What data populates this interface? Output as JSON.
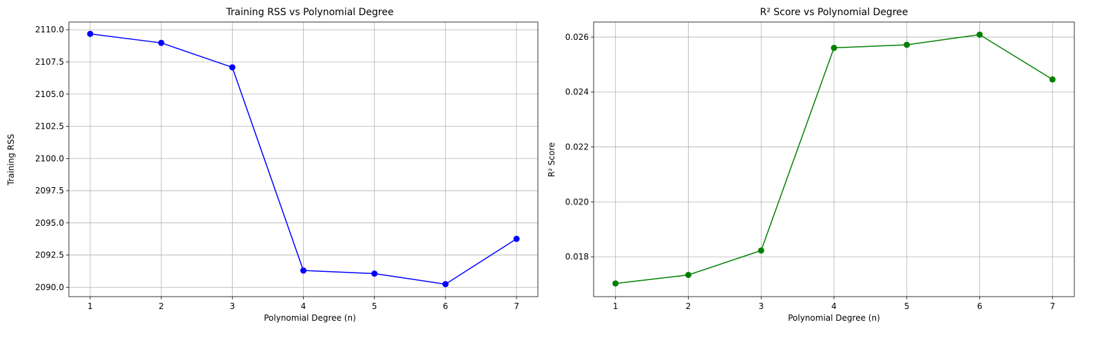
{
  "chart_data": [
    {
      "type": "line",
      "title": "Training RSS vs Polynomial Degree",
      "xlabel": "Polynomial Degree (n)",
      "ylabel": "Training RSS",
      "x": [
        1,
        2,
        3,
        4,
        5,
        6,
        7
      ],
      "xticks": [
        1,
        2,
        3,
        4,
        5,
        6,
        7
      ],
      "xlim": [
        0.7,
        7.3
      ],
      "yticks": [
        2090.0,
        2092.5,
        2095.0,
        2097.5,
        2100.0,
        2102.5,
        2105.0,
        2107.5,
        2110.0
      ],
      "ylim": [
        2089.27,
        2110.6
      ],
      "grid": true,
      "marker": "circle",
      "series": [
        {
          "values": [
            2109.68,
            2108.98,
            2107.08,
            2091.3,
            2091.06,
            2090.24,
            2093.76
          ],
          "color": "#0000ff"
        }
      ]
    },
    {
      "type": "line",
      "title": "R² Score vs Polynomial Degree",
      "xlabel": "Polynomial Degree (n)",
      "ylabel": "R² Score",
      "x": [
        1,
        2,
        3,
        4,
        5,
        6,
        7
      ],
      "xticks": [
        1,
        2,
        3,
        4,
        5,
        6,
        7
      ],
      "xlim": [
        0.7,
        7.3
      ],
      "yticks": [
        0.018,
        0.02,
        0.022,
        0.024,
        0.026
      ],
      "ylim": [
        0.01655,
        0.02655
      ],
      "grid": true,
      "marker": "circle",
      "series": [
        {
          "values": [
            0.01703,
            0.01734,
            0.01823,
            0.02561,
            0.02572,
            0.02609,
            0.02446
          ],
          "color": "#008000"
        }
      ]
    }
  ]
}
